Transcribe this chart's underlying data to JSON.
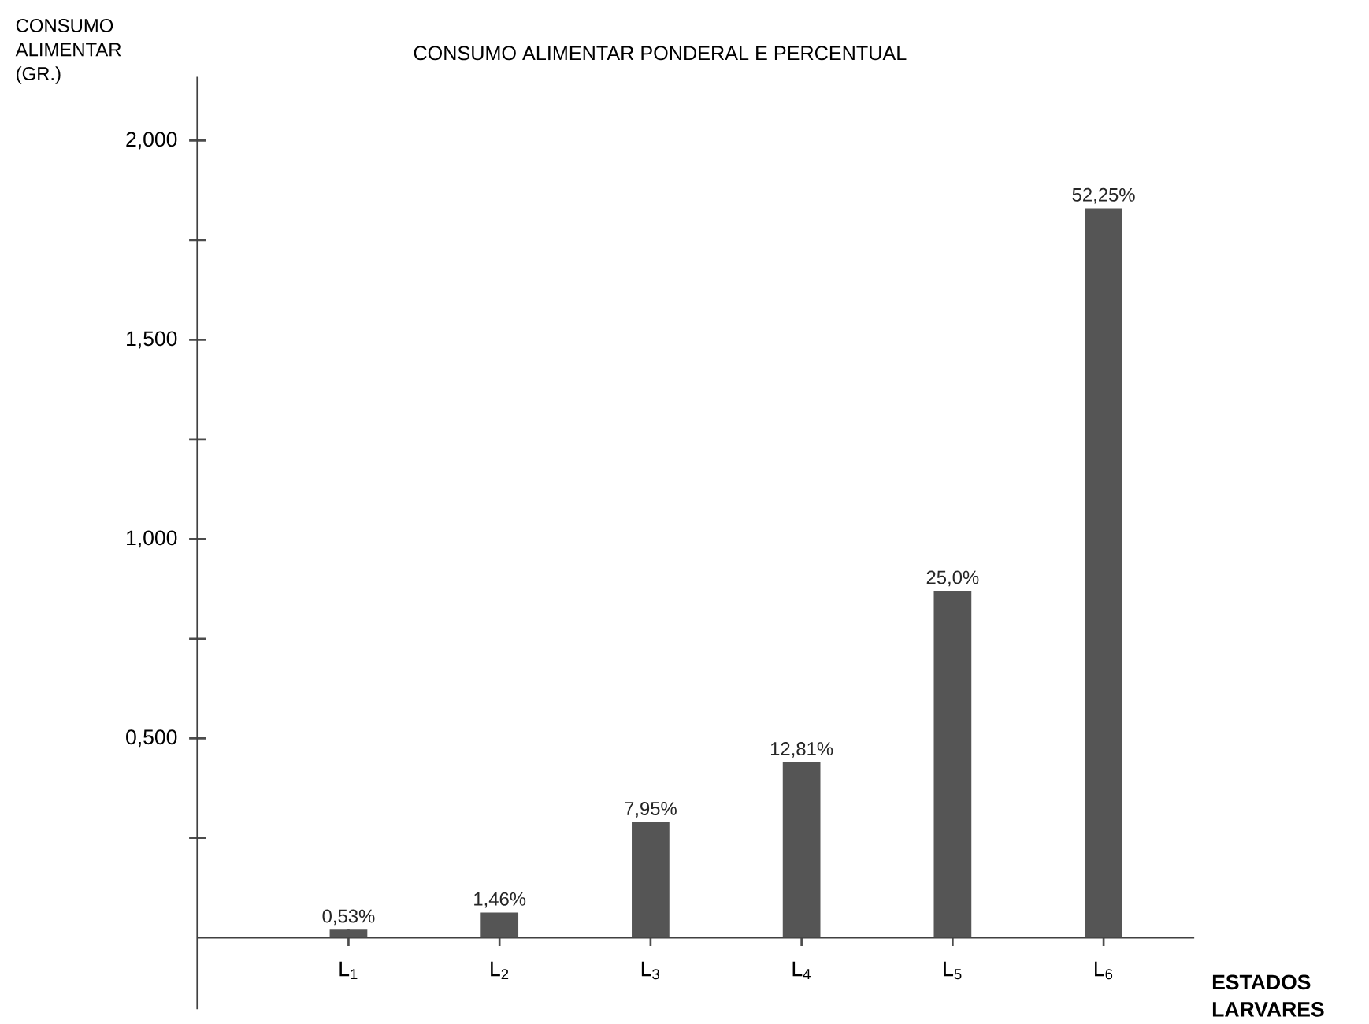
{
  "chart_data": {
    "type": "bar",
    "title": "CONSUMO ALIMENTAR PONDERAL E PERCENTUAL",
    "xlabel": "ESTADOS LARVARES",
    "ylabel": "CONSUMO ALIMENTAR (GR.)",
    "categories": [
      "L$_{1}$",
      "L$_{2}$",
      "L$_{3}$",
      "L$_{4}$",
      "L$_{5}$",
      "L$_{6}$"
    ],
    "values": [
      0.02,
      0.063,
      0.29,
      0.44,
      0.87,
      1.83
    ],
    "annotations": [
      {
        "text": "0,53%",
        "x": "L$_{1}$",
        "y": 0.02
      },
      {
        "text": "1,46%",
        "x": "L$_{2}$",
        "y": 0.063
      },
      {
        "text": "7,95%",
        "x": "L$_{3}$",
        "y": 0.29
      },
      {
        "text": "12,81%",
        "x": "L$_{4}$",
        "y": 0.44
      },
      {
        "text": "25,0%",
        "x": "L$_{5}$",
        "y": 0.87
      },
      {
        "text": "52,25%",
        "x": "L$_{6}$",
        "y": 1.83
      }
    ],
    "color": "#555555",
    "ylim": [
      -0.18,
      2.16
    ],
    "yticks": [
      {
        "value": 0.25,
        "label": null
      },
      {
        "value": 0.5,
        "label": "0,500"
      },
      {
        "value": 0.75,
        "label": null
      },
      {
        "value": 1.0,
        "label": "1,000"
      },
      {
        "value": 1.25,
        "label": null
      },
      {
        "value": 1.5,
        "label": "1,500"
      },
      {
        "value": 1.75,
        "label": null
      },
      {
        "value": 2.0,
        "label": "2,000"
      }
    ],
    "marker": "none"
  }
}
